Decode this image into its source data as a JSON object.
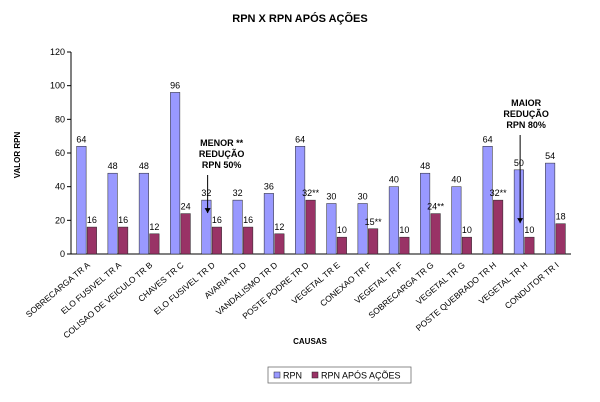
{
  "chart_data": {
    "type": "bar",
    "title": "RPN X RPN APÓS AÇÕES",
    "xlabel": "CAUSAS",
    "ylabel": "VALOR RPN",
    "ylim": [
      0,
      120
    ],
    "yticks": [
      0,
      20,
      40,
      60,
      80,
      100,
      120
    ],
    "grid": false,
    "legend_position": "bottom",
    "categories": [
      "SOBRECARGA TR A",
      "ELO FUSIVEL TR A",
      "COLISAO DE VEICULO TR B",
      "CHAVES TR C",
      "ELO FUSIVEL TR D",
      "AVARIA TR D",
      "VANDALISMO TR D",
      "POSTE PODRE TR D",
      "VEGETAL TR E",
      "CONEXAO TR F",
      "VEGETAL TR F",
      "SOBRECARGA TR G",
      "VEGETAL TR G",
      "POSTE QUEBRADO TR H",
      "VEGETAL TR H",
      "CONDUTOR TR I"
    ],
    "series": [
      {
        "name": "RPN",
        "color": "#9999ff",
        "values": [
          64,
          48,
          48,
          96,
          32,
          32,
          36,
          64,
          30,
          30,
          40,
          48,
          40,
          64,
          50,
          54
        ],
        "labels": [
          "64",
          "48",
          "48",
          "96",
          "32",
          "32",
          "36",
          "64",
          "30",
          "30",
          "40",
          "48",
          "40",
          "64",
          "50",
          "54"
        ]
      },
      {
        "name": "RPN APÓS AÇÕES",
        "color": "#993366",
        "values": [
          16,
          16,
          12,
          24,
          16,
          16,
          12,
          32,
          10,
          15,
          10,
          24,
          10,
          32,
          10,
          18
        ],
        "labels": [
          "16",
          "16",
          "12",
          "24",
          "16",
          "16",
          "12",
          "32**",
          "10",
          "15**",
          "10",
          "24**",
          "10",
          "32**",
          "10",
          "18"
        ]
      }
    ],
    "annotations": [
      {
        "lines": [
          "MENOR **",
          "REDUÇÃO",
          "RPN 50%"
        ],
        "category": "ELO FUSIVEL TR D"
      },
      {
        "lines": [
          "MAIOR",
          "REDUÇÃO",
          "RPN 80%"
        ],
        "category": "VEGETAL TR H"
      }
    ]
  }
}
